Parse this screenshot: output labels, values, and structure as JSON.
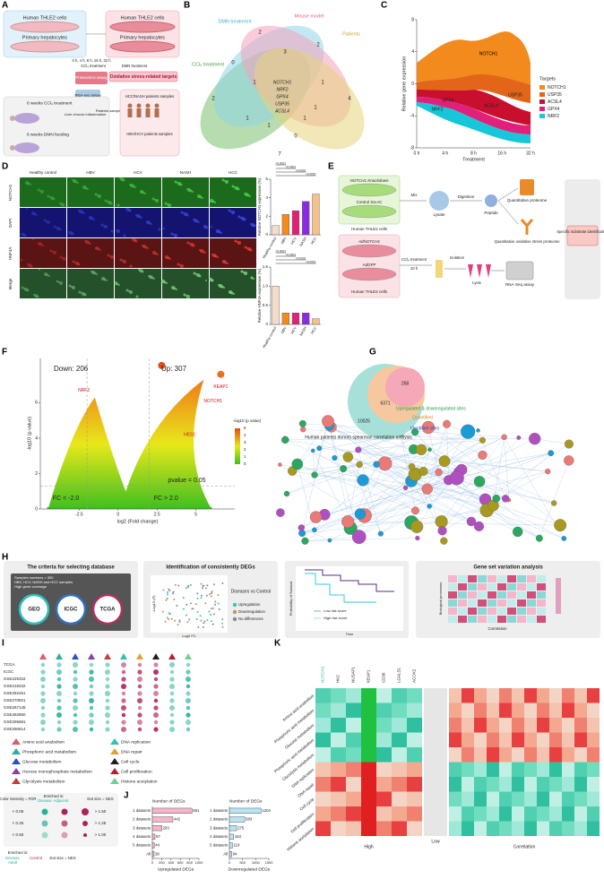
{
  "A": {
    "letter": "A",
    "cells_top": "Human THLE2 cells",
    "hep": "Primary hepatocytes",
    "time": "0 h, 4 h, 8 h, 16 h, 32 h",
    "ccl4": "CCl₄ treatment",
    "dmn": "DMN treatment",
    "cells_right": "Human THLE2 cells",
    "hep_right": "Primary hepatocytes",
    "proteomics": "Proteomics assay",
    "rnaseq": "RNA-seq assay",
    "targets": "Oxidative stress-related targets",
    "ccl4_6w": "6 weeks CCl₄ treatment",
    "dmn_6w": "6 weeks DMN feeding",
    "liver": "Liver chronic inflammation",
    "patients": "Patients samples",
    "hcc": "HCC/NASH patients samples",
    "hbv": "HBV/HCV patients samples"
  },
  "B": {
    "letter": "B",
    "sets": [
      "CCl₄ treatment",
      "DMN treatment",
      "Mouse model",
      "Patients"
    ],
    "counts": [
      2,
      3,
      2,
      0,
      2,
      1,
      1,
      1,
      4,
      1,
      1,
      1,
      0,
      7
    ],
    "core": [
      "NOTCH1",
      "NRF2",
      "GPX4",
      "USP35",
      "ACSL4"
    ]
  },
  "C": {
    "letter": "C",
    "type": "area",
    "ylabel": "Relative gene expression",
    "xlabel": "Treatment",
    "categories": [
      "0 h",
      "4 h",
      "8 h",
      "16 h",
      "32 h"
    ],
    "ylim": [
      -8,
      8
    ],
    "yticks": [
      -8,
      -4,
      0,
      4,
      8
    ],
    "legend_title": "Targets",
    "series": [
      {
        "name": "NOTCH1",
        "color": "#f28a1e"
      },
      {
        "name": "USP35",
        "color": "#e2651a"
      },
      {
        "name": "ACSL4",
        "color": "#c8102e"
      },
      {
        "name": "GPX4",
        "color": "#e0207a"
      },
      {
        "name": "NRF2",
        "color": "#17c6d8"
      }
    ]
  },
  "D": {
    "letter": "D",
    "columns": [
      "Healthy control",
      "HBV",
      "HCV",
      "NASH",
      "HCC"
    ],
    "rows": [
      "NOTCH1",
      "DAPI",
      "HNF4A",
      "Merge"
    ],
    "charts": [
      {
        "type": "bar",
        "ylabel": "Relative NOTCH1 expression (%)",
        "categories": [
          "Healthy control",
          "HBV",
          "HCV",
          "NASH",
          "HCC"
        ],
        "values": [
          1.0,
          2.2,
          2.6,
          3.6,
          4.4
        ],
        "colors": [
          "#f6dcc8",
          "#f28a1e",
          "#e0207a",
          "#8a2be2",
          "#f6c089"
        ],
        "ylim": [
          0,
          6
        ],
        "yticks": [
          0,
          2,
          4,
          6
        ],
        "significance": [
          "<0.0001",
          "<0.0001",
          "<0.0001",
          "<0.0001"
        ]
      },
      {
        "type": "bar",
        "ylabel": "Relative HNF4A expression (%)",
        "categories": [
          "Healthy control",
          "HBV",
          "HCV",
          "NASH",
          "HCC"
        ],
        "values": [
          1.0,
          0.3,
          0.3,
          0.3,
          0.15
        ],
        "colors": [
          "#f6dcc8",
          "#f28a1e",
          "#e0207a",
          "#8a2be2",
          "#f6c089"
        ],
        "ylim": [
          0,
          1.5
        ],
        "yticks": [
          0,
          0.5,
          {
            "value": 1,
            "label": "1.0"
          },
          1.5
        ],
        "significance": [
          "<0.0001",
          "<0.0001",
          "<0.0001",
          "<0.0001"
        ]
      }
    ]
  },
  "E": {
    "letter": "E",
    "knock": "NOTCH1 Knockdown",
    "control": "Control SILAC",
    "mix": "Mix",
    "lysate": "Lysate",
    "digestion": "Digestion",
    "peptide": "Peptide",
    "qprot": "Quantitative proteome",
    "qox": "Quantitative oxidative stress proteome",
    "cells1": "Human THLE2 cells",
    "ad": "AdNOTCH1",
    "gfp": "AdGFP",
    "cells2": "Human THLE2 cells",
    "ccl4": "CCl₄ treatment",
    "time": "10 h",
    "isolation": "Isolation",
    "lysis": "Lysis",
    "rna": "RNA-Seq assay",
    "specific": "Specific substrate identification"
  },
  "F": {
    "letter": "F",
    "down": "Down: 206",
    "up": "Up: 307",
    "genes": [
      "NRF2",
      "KEAP1",
      "NOTCH1",
      "HES1"
    ],
    "ylabel": "-log10 (p value)",
    "xlabel": "log2 (Fold change)",
    "pline": "pvalue = 0.05",
    "fc_low": "FC < -2.0",
    "fc_high": "FC > 2.0",
    "xlim": [
      -5,
      7.5
    ],
    "xticks": [
      -2.5,
      0,
      2.5,
      5
    ],
    "ylim": [
      0,
      8.5
    ],
    "yticks": [
      0,
      2,
      4,
      6
    ],
    "legend_title": "-log10 (p value)",
    "legend_ticks": [
      0,
      1,
      2,
      3,
      4,
      5
    ]
  },
  "G": {
    "letter": "G",
    "n1": "258",
    "n2": "6371",
    "n3": "10025",
    "l1": "Upregulated & downregulated sites",
    "l2": "Quantified",
    "l3": "Identified sites",
    "corr": "Human patients donors spearman correlation analysis"
  },
  "H": {
    "letter": "H",
    "t1": "The criteria for selecting database",
    "criteria": [
      "Samples numbers > 300",
      "HBV, HCV, NASH and HCC samples",
      "High gene coverage"
    ],
    "dbs": [
      "GEO",
      "ICGC",
      "TCGA"
    ],
    "t2": "Identification of consistently DEGs",
    "dvc": "Diseases vs Control",
    "legend": [
      "Upregulation",
      "Downregulation",
      "No differences"
    ],
    "yl": "-Log10 (P)",
    "xl": "Log2 FC",
    "surv": "Probability of Survival",
    "time": "Time",
    "low": "Low risk score",
    "high": "High risk score",
    "t4": "Gene set variation analysis",
    "bio": "Biological processes",
    "corr": "Correlation"
  },
  "I": {
    "letter": "I",
    "rows": [
      "TCGA",
      "ICGC",
      "GSE225322",
      "GSE218332",
      "GSE282451",
      "GSE270921",
      "GSE267145",
      "GSE282860",
      "GSE295881",
      "GSE290614"
    ],
    "pathways": [
      "Amino acid anabolism",
      "Phosphoric acid metabolism",
      "Glucose metabolism",
      "Hexose monophosphate metabolism",
      "Glycolysis metabolism",
      "DNA replication",
      "DNA repair",
      "Cell cycle",
      "Cell proliferation",
      "Histone acetylation"
    ],
    "legend": {
      "color_title": "Color intensity = FDR",
      "enriched": "Enriched in:",
      "disease": "Disease",
      "adjacent": "Adjacent",
      "size_title": "Dot size = NES",
      "fdr": [
        "< 0.05",
        "< 0.25",
        "< 0.50"
      ],
      "nes": [
        "> 1.50",
        "> 1.25",
        "> 1.00"
      ],
      "enriched2": "Enriched in:",
      "disease2": "Disease",
      "adult": "Adult",
      "control": "Control",
      "dotsize": "Dot size = NES"
    }
  },
  "J": {
    "letter": "J",
    "charts": [
      {
        "type": "hbar",
        "title": "Number of DEGs",
        "xlabel": "Upregulated DEGs",
        "categories": [
          "1 datasets",
          "2 datasets",
          "3 datasets",
          "4 datasets",
          "5 datasets",
          "All"
        ],
        "values": [
          851,
          442,
          203,
          57,
          44,
          38
        ],
        "color": "#f4b6c8",
        "xlim": [
          0,
          1000
        ],
        "xticks": [
          0,
          200,
          400,
          600,
          800,
          1000
        ]
      },
      {
        "type": "hbar",
        "title": "Number of DEGs",
        "xlabel": "Downregulated DEGs",
        "categories": [
          "1 datasets",
          "2 datasets",
          "3 datasets",
          "4 datasets",
          "5 datasets",
          "All"
        ],
        "values": [
          1204,
          583,
          275,
          163,
          119,
          94
        ],
        "color": "#b8e4f4",
        "xlim": [
          0,
          1500
        ],
        "xticks": [
          0,
          500,
          1000,
          1500
        ]
      }
    ]
  },
  "K": {
    "letter": "K",
    "genes": [
      "NOTCH1",
      "HK2",
      "NUSAP1",
      "KEAP1",
      "CD36",
      "LGALS1",
      "ACOX2"
    ],
    "rows": [
      "Amino acid anabolism",
      "Phosphoric acid metabolism",
      "Glucose metabolism",
      "Phosphoric acid metabolism",
      "Glycolysis metabolism",
      "DNA replication",
      "DNA repair",
      "Cell cycle",
      "Cell proliferation",
      "Histone acetylation"
    ],
    "high": "High",
    "low": "Low",
    "corr": "Correlation"
  }
}
